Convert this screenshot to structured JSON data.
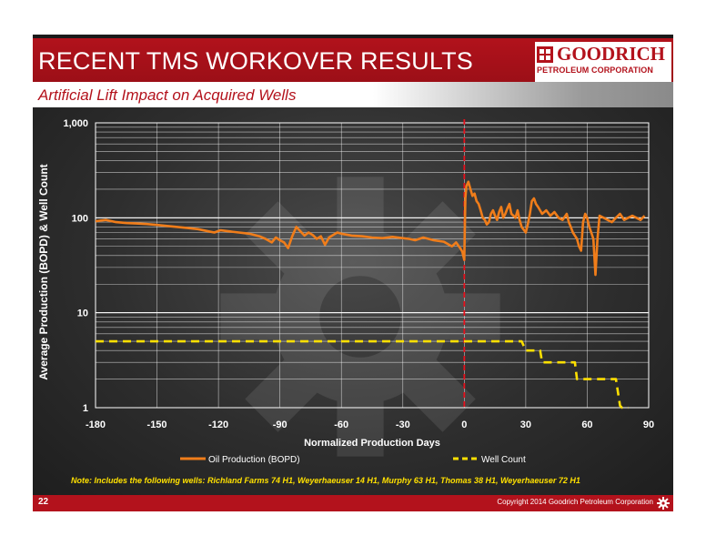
{
  "slide": {
    "title": "RECENT TMS WORKOVER RESULTS",
    "subtitle": "Artificial Lift Impact on Acquired Wells",
    "logo_name": "GOODRICH",
    "logo_sub": "PETROLEUM CORPORATION",
    "note": "Note:  Includes the following wells: Richland Farms 74 H1, Weyerhaeuser 14  H1, Murphy 63 H1, Thomas 38 H1, Weyerhaeuser 72 H1",
    "page_number": "22",
    "copyright": "Copyright 2014 Goodrich Petroleum Corporation"
  },
  "colors": {
    "brand_red": "#b3121c",
    "oil_line": "#f07d1a",
    "well_count_line": "#ffe000",
    "zero_marker": "#e8101c",
    "grid": "#ffffff"
  },
  "chart_data": {
    "type": "line",
    "xlabel": "Normalized Production Days",
    "ylabel": "Average Production (BOPD) & Well Count",
    "xlim": [
      -180,
      90
    ],
    "x_ticks": [
      -180,
      -150,
      -120,
      -90,
      -60,
      -30,
      0,
      30,
      60,
      90
    ],
    "ylim": [
      1,
      1000
    ],
    "y_scale": "log",
    "y_ticks": [
      1,
      10,
      100,
      1000
    ],
    "y_tick_labels": [
      "1",
      "10",
      "100",
      "1,000"
    ],
    "vertical_marker_x": 0,
    "legend_position": "bottom",
    "grid": true,
    "series": [
      {
        "name": "Oil Production (BOPD)",
        "x": [
          -180,
          -175,
          -170,
          -165,
          -160,
          -155,
          -150,
          -145,
          -140,
          -135,
          -130,
          -125,
          -122,
          -119,
          -115,
          -110,
          -105,
          -100,
          -97,
          -94,
          -92,
          -90,
          -88,
          -86,
          -84,
          -82,
          -80,
          -78,
          -76,
          -74,
          -72,
          -70,
          -68,
          -66,
          -64,
          -62,
          -60,
          -55,
          -50,
          -45,
          -40,
          -35,
          -30,
          -27,
          -24,
          -20,
          -15,
          -10,
          -6,
          -4,
          -2,
          -1,
          0,
          0.5,
          1,
          2,
          3,
          4,
          5,
          6,
          7,
          8,
          9,
          10,
          11,
          12,
          13,
          14,
          15,
          16,
          17,
          18,
          19,
          20,
          21,
          22,
          23,
          24,
          25,
          26,
          27,
          28,
          29,
          30,
          31,
          32,
          33,
          34,
          35,
          36,
          38,
          40,
          42,
          44,
          46,
          48,
          50,
          51,
          52,
          53,
          54,
          55,
          56,
          57,
          58,
          59,
          60,
          61,
          62,
          63,
          64,
          65,
          66,
          68,
          70,
          72,
          74,
          76,
          78,
          80,
          82,
          84,
          86,
          88
        ],
        "values": [
          92,
          95,
          90,
          88,
          87,
          86,
          84,
          82,
          80,
          78,
          76,
          72,
          70,
          74,
          72,
          70,
          68,
          64,
          60,
          55,
          62,
          58,
          55,
          48,
          64,
          80,
          72,
          65,
          70,
          66,
          60,
          64,
          52,
          62,
          66,
          70,
          68,
          65,
          64,
          62,
          61,
          63,
          61,
          60,
          58,
          62,
          58,
          56,
          50,
          55,
          48,
          44,
          36,
          160,
          215,
          240,
          200,
          170,
          180,
          150,
          140,
          120,
          100,
          95,
          85,
          90,
          110,
          120,
          105,
          95,
          115,
          130,
          100,
          110,
          125,
          140,
          110,
          105,
          100,
          120,
          95,
          80,
          75,
          70,
          85,
          110,
          150,
          160,
          140,
          130,
          110,
          120,
          105,
          115,
          100,
          95,
          110,
          90,
          80,
          70,
          65,
          60,
          50,
          45,
          90,
          110,
          100,
          80,
          70,
          60,
          25,
          60,
          105,
          100,
          95,
          90,
          100,
          110,
          95,
          100,
          105,
          100,
          95,
          105
        ],
        "color": "#f07d1a"
      },
      {
        "name": "Well Count",
        "x": [
          -180,
          28,
          30,
          37,
          38,
          54,
          55,
          74,
          76,
          77,
          80
        ],
        "values": [
          5,
          5,
          4,
          4,
          3,
          3,
          2,
          2,
          1.05,
          1,
          1
        ],
        "color": "#ffe000"
      }
    ]
  }
}
